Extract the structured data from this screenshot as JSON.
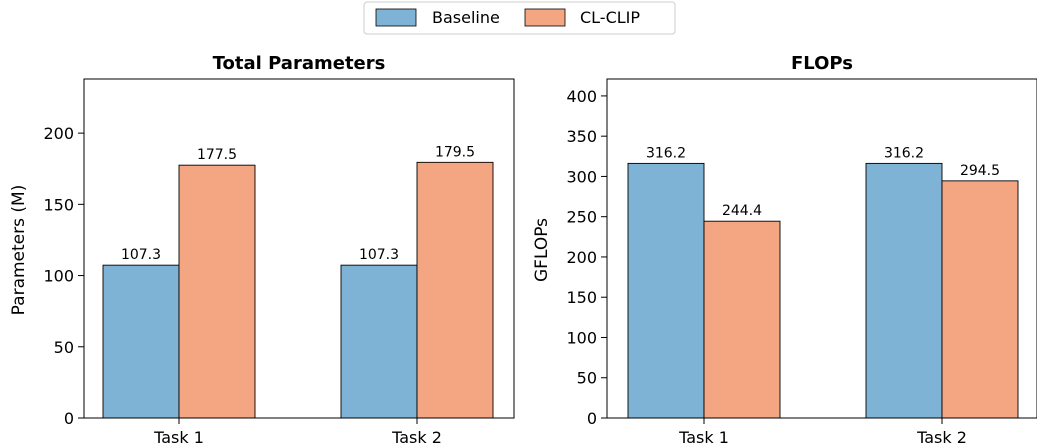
{
  "legend": [
    {
      "name": "Baseline",
      "color": "#7fb3d5"
    },
    {
      "name": "CL-CLIP",
      "color": "#f4a582"
    }
  ],
  "chart_data": [
    {
      "type": "bar",
      "title": "Total Parameters",
      "xlabel": "",
      "ylabel": "Parameters (M)",
      "categories": [
        "Task 1",
        "Task 2"
      ],
      "series": [
        {
          "name": "Baseline",
          "values": [
            107.3,
            107.3
          ]
        },
        {
          "name": "CL-CLIP",
          "values": [
            177.5,
            179.5
          ]
        }
      ],
      "ylim": [
        0,
        238
      ],
      "yticks": [
        0,
        50,
        100,
        150,
        200
      ],
      "data_labels": [
        [
          "107.3",
          "107.3"
        ],
        [
          "177.5",
          "179.5"
        ]
      ],
      "grid": false,
      "legend_position": "top-center"
    },
    {
      "type": "bar",
      "title": "FLOPs",
      "xlabel": "",
      "ylabel": "GFLOPs",
      "categories": [
        "Task 1",
        "Task 2"
      ],
      "series": [
        {
          "name": "Baseline",
          "values": [
            316.2,
            316.2
          ]
        },
        {
          "name": "CL-CLIP",
          "values": [
            244.4,
            294.5
          ]
        }
      ],
      "ylim": [
        0,
        421
      ],
      "yticks": [
        0,
        50,
        100,
        150,
        200,
        250,
        300,
        350,
        400
      ],
      "data_labels": [
        [
          "316.2",
          "316.2"
        ],
        [
          "244.4",
          "294.5"
        ]
      ],
      "grid": false,
      "legend_position": "top-center"
    }
  ]
}
